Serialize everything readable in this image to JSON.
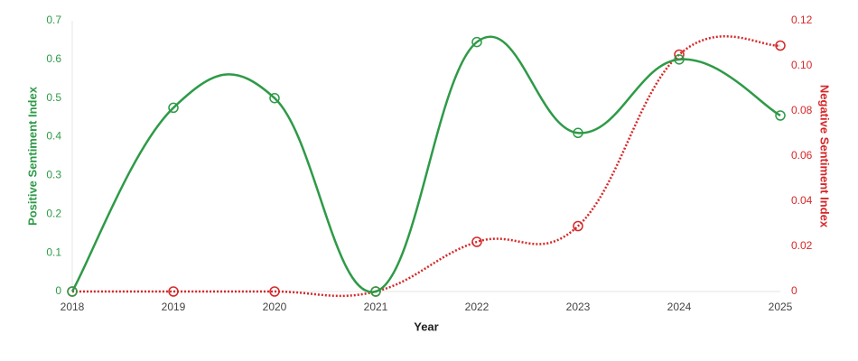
{
  "chart_data": {
    "type": "line",
    "x_label": "Year",
    "y_label": "Positive Sentiment Index",
    "y2_label": "Negative Sentiment Index",
    "categories": [
      "2018",
      "2019",
      "2020",
      "2021",
      "2022",
      "2023",
      "2024",
      "2025"
    ],
    "series": [
      {
        "name": "Positive Sentiment Index",
        "color": "#2e9a47",
        "values": [
          0,
          0.475,
          0.5,
          0,
          0.645,
          0.41,
          0.6,
          0.455
        ]
      },
      {
        "name": "Negative Sentiment Index",
        "color": "#d62728",
        "axis": "y2",
        "dashed": true,
        "values": [
          0,
          0,
          0,
          0,
          0.022,
          0.029,
          0.105,
          0.109
        ]
      }
    ],
    "ylim": [
      0,
      0.7
    ],
    "yticks": [
      0,
      0.1,
      0.2,
      0.3,
      0.4,
      0.5,
      0.6,
      0.7
    ],
    "y2lim": [
      0,
      0.12
    ],
    "y2ticks": [
      0,
      0.02,
      0.04,
      0.06,
      0.08,
      {
        "value": 0.1,
        "label": "0.10"
      },
      0.12
    ],
    "grid": false
  }
}
